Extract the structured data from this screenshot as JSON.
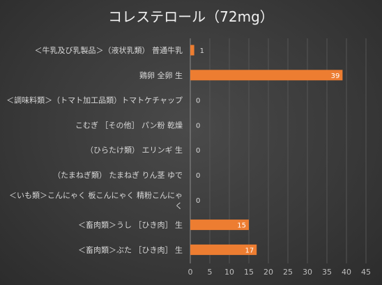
{
  "chart_data": {
    "type": "bar",
    "orientation": "horizontal",
    "title": "コレステロール（72mg）",
    "categories": [
      "＜牛乳及び乳製品＞（液状乳類） 普通牛乳",
      "鶏卵 全卵 生",
      "＜調味料類＞（トマト加工品類）トマトケチャップ",
      "こむぎ ［その他］ パン粉 乾燥",
      "（ひらたけ類） エリンギ 生",
      "（たまねぎ類） たまねぎ りん茎 ゆで",
      "＜いも類＞こんにゃく 板こんにゃく 精粉こんにゃく",
      "＜畜肉類＞うし ［ひき肉］ 生",
      "＜畜肉類＞ぶた ［ひき肉］ 生"
    ],
    "values": [
      1,
      39,
      0,
      0,
      0,
      0,
      0,
      15,
      17
    ],
    "xlim": [
      0,
      45
    ],
    "xticks": [
      0,
      5,
      10,
      15,
      20,
      25,
      30,
      35,
      40,
      45
    ],
    "data_labels": true,
    "grid": "vertical",
    "legend": "none",
    "bar_color": "#ed7d31"
  }
}
